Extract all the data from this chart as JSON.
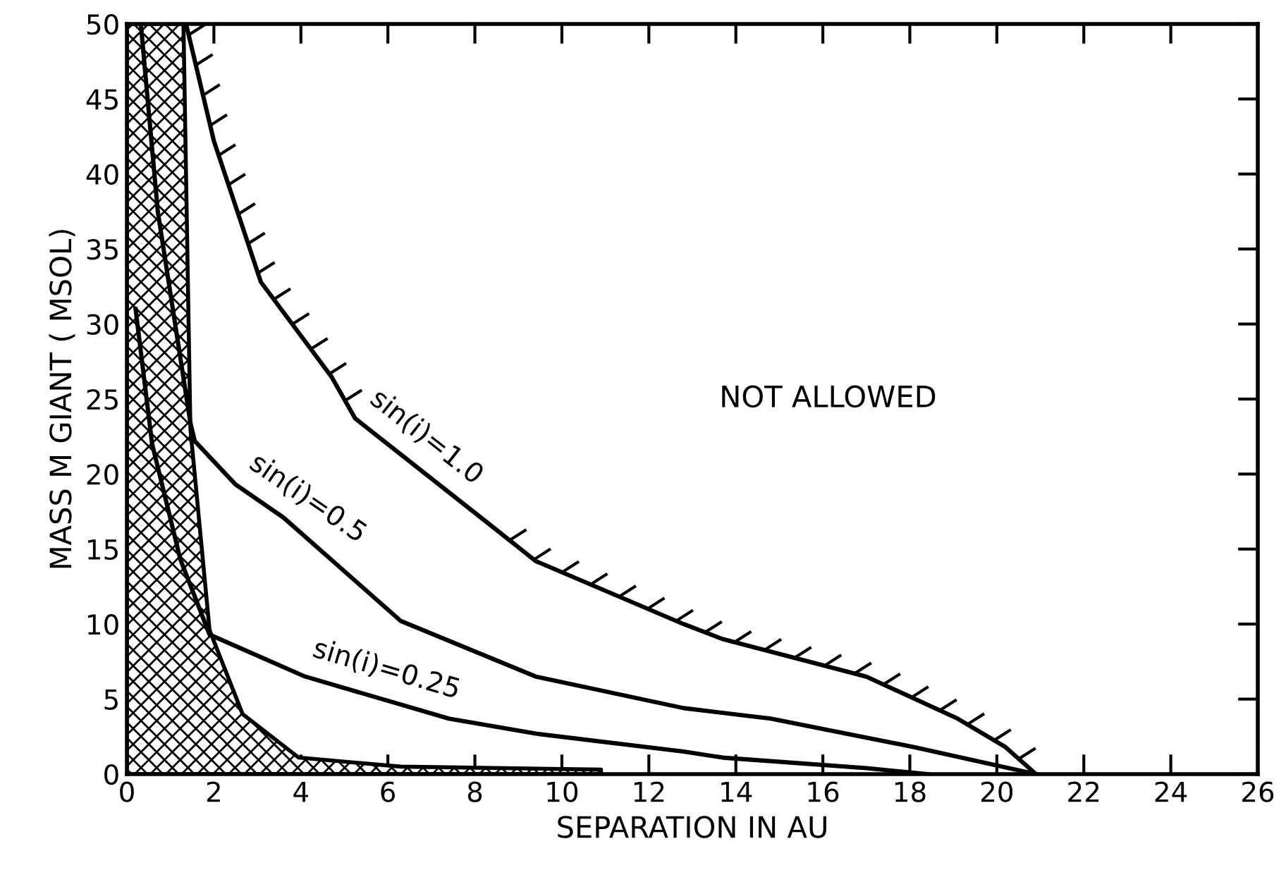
{
  "chart_data": {
    "type": "line",
    "xlabel": "SEPARATION IN AU",
    "ylabel": "MASS M GIANT ( MSOL)",
    "annotations": [
      "NOT ALLOWED"
    ],
    "series": [
      {
        "type": "area",
        "color": "#000000",
        "x": [
          0,
          1.3,
          1.46,
          1.9,
          2.66,
          3.95,
          6.3,
          10.9
        ],
        "values": [
          50,
          50,
          23,
          9.6,
          4.0,
          1.1,
          0.5,
          0.3
        ]
      },
      {
        "name": "sin(i)=1.0",
        "color": "#000000",
        "x": [
          1.36,
          2.0,
          3.08,
          4.7,
          5.25,
          8.27,
          9.4,
          12.8,
          13.7,
          17.0,
          19.1,
          20.2,
          20.9
        ],
        "values": [
          50,
          42.2,
          32.8,
          26.5,
          23.7,
          16.8,
          14.2,
          10.0,
          9.0,
          6.5,
          3.7,
          1.8,
          0
        ]
      },
      {
        "name": "sin(i)=0.5",
        "color": "#000000",
        "x": [
          0.32,
          0.71,
          1.46,
          1.56,
          2.5,
          3.6,
          6.3,
          9.4,
          12.8,
          14.8,
          18.1,
          20.9
        ],
        "values": [
          50,
          37.5,
          23.4,
          22.2,
          19.3,
          17.1,
          10.2,
          6.5,
          4.4,
          3.7,
          1.8,
          0
        ]
      },
      {
        "name": "sin(i)=0.25",
        "color": "#000000",
        "x": [
          0.2,
          0.58,
          1.23,
          1.9,
          4.1,
          7.4,
          9.4,
          12.8,
          13.7,
          17.0,
          18.4
        ],
        "values": [
          31,
          22,
          14.3,
          9.3,
          6.5,
          3.7,
          2.7,
          1.5,
          1.1,
          0.4,
          0
        ]
      }
    ],
    "xlim": [
      0,
      26
    ],
    "ylim": [
      0,
      50
    ],
    "xticks": [
      0,
      2,
      4,
      6,
      8,
      10,
      12,
      14,
      16,
      18,
      20,
      22,
      24,
      26
    ],
    "yticks": [
      0,
      5,
      10,
      15,
      20,
      25,
      30,
      35,
      40,
      45,
      50
    ],
    "grid": false,
    "marker": "none",
    "line_style": "solid"
  }
}
